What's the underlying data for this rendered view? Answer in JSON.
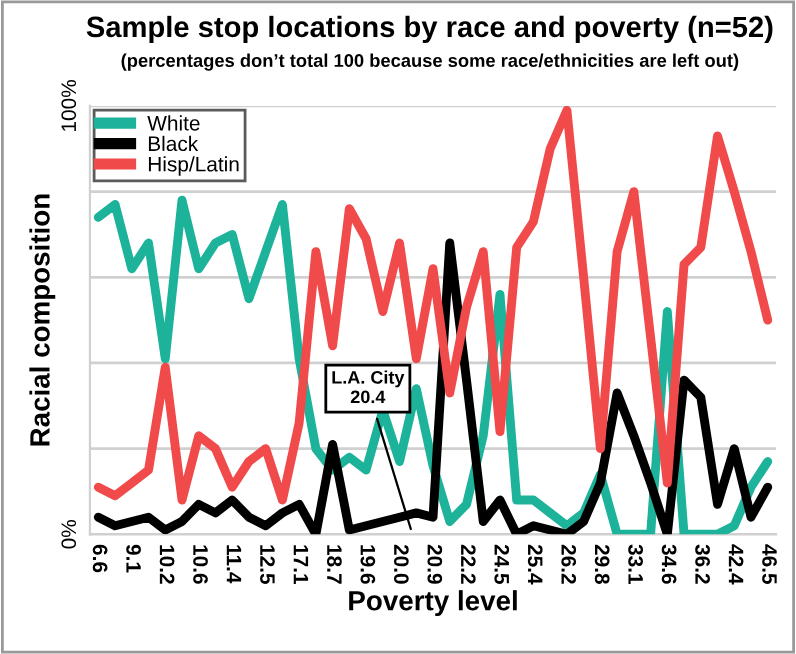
{
  "chart_data": {
    "type": "line",
    "title": "Sample stop locations by race and poverty (n=52)",
    "subtitle": "(percentages don’t total 100 because some race/ethnicities are left out)",
    "xlabel": "Poverty level",
    "ylabel": "Racial composition",
    "categories": [
      "6.6",
      null,
      "9.1",
      null,
      "10.2",
      null,
      "10.6",
      null,
      "11.4",
      null,
      "12.5",
      null,
      "17.1",
      null,
      "18.7",
      null,
      "19.6",
      null,
      "20.0",
      null,
      "20.9",
      null,
      "22.2",
      null,
      "24.5",
      null,
      "25.4",
      null,
      "26.2",
      null,
      "29.8",
      null,
      "33.1",
      null,
      "34.6",
      null,
      "36.2",
      null,
      "42.4",
      null,
      "46.5"
    ],
    "series": [
      {
        "name": "White",
        "color": "#1cb39a",
        "values": [
          74,
          77,
          62,
          68,
          41,
          78,
          62,
          68,
          70,
          55,
          66,
          77,
          41,
          20,
          15,
          18,
          15,
          29,
          17,
          34,
          16,
          3,
          7,
          23,
          56,
          8,
          8,
          5,
          2,
          5,
          14,
          0,
          0,
          0,
          52,
          0,
          0,
          0,
          2,
          11,
          17
        ]
      },
      {
        "name": "Black",
        "color": "#000000",
        "values": [
          4,
          2,
          3,
          4,
          1,
          3,
          7,
          5,
          8,
          4,
          2,
          5,
          7,
          0,
          21,
          1,
          2,
          3,
          4,
          5,
          4,
          68,
          36,
          3,
          8,
          0,
          2,
          1,
          0,
          3,
          12,
          33,
          23,
          12,
          0,
          36,
          32,
          7,
          20,
          4,
          11
        ]
      },
      {
        "name": "Hisp/Latin",
        "color": "#f04a4a",
        "values": [
          11,
          9,
          12,
          15,
          39,
          8,
          23,
          20,
          11,
          17,
          20,
          8,
          26,
          66,
          44,
          76,
          69,
          52,
          68,
          41,
          62,
          33,
          53,
          66,
          24,
          67,
          73,
          90,
          99,
          60,
          20,
          66,
          80,
          46,
          12,
          63,
          67,
          93,
          80,
          66,
          50
        ]
      }
    ],
    "ylim": [
      0,
      100
    ],
    "yticks": [
      {
        "value": 0,
        "label": "0%"
      },
      {
        "value": 20,
        "label": null
      },
      {
        "value": 40,
        "label": null
      },
      {
        "value": 60,
        "label": null
      },
      {
        "value": 80,
        "label": null
      },
      {
        "value": 100,
        "label": "100%"
      }
    ],
    "grid": "y",
    "legend": "top left",
    "marker": "none",
    "line_style": "solid",
    "annotations": [
      "L.A. City\n20.4"
    ]
  }
}
